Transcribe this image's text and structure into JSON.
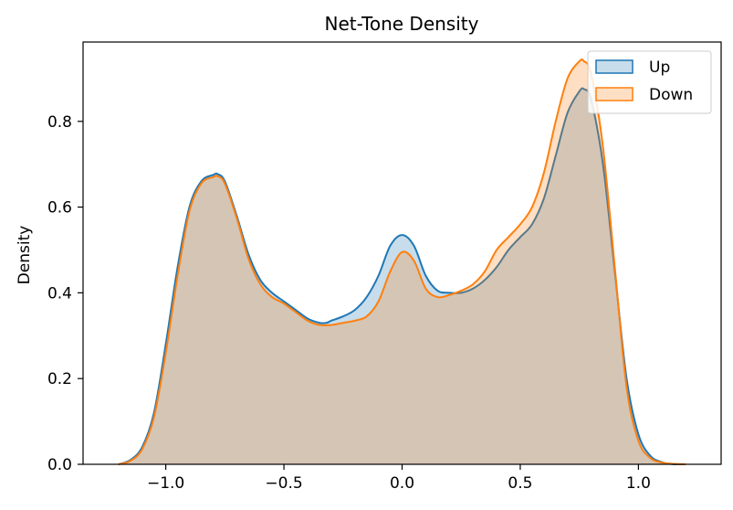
{
  "chart_data": {
    "type": "area",
    "title": "Net-Tone Density",
    "xlabel": "",
    "ylabel": "Density",
    "xlim": [
      -1.35,
      1.35
    ],
    "ylim": [
      0,
      0.985
    ],
    "xticks": [
      -1.0,
      -0.5,
      0.0,
      0.5,
      1.0
    ],
    "xtick_labels": [
      "−1.0",
      "−0.5",
      "0.0",
      "0.5",
      "1.0"
    ],
    "yticks": [
      0.0,
      0.2,
      0.4,
      0.6,
      0.8
    ],
    "ytick_labels": [
      "0.0",
      "0.2",
      "0.4",
      "0.6",
      "0.8"
    ],
    "grid": false,
    "legend_position": "top-right",
    "series": [
      {
        "name": "Up",
        "color": "#1f77b4",
        "x": [
          -1.2,
          -1.15,
          -1.1,
          -1.05,
          -1.0,
          -0.95,
          -0.9,
          -0.85,
          -0.8,
          -0.78,
          -0.75,
          -0.7,
          -0.65,
          -0.6,
          -0.55,
          -0.5,
          -0.45,
          -0.4,
          -0.35,
          -0.32,
          -0.3,
          -0.25,
          -0.2,
          -0.15,
          -0.1,
          -0.05,
          0.0,
          0.05,
          0.1,
          0.15,
          0.2,
          0.25,
          0.3,
          0.35,
          0.4,
          0.45,
          0.5,
          0.55,
          0.6,
          0.65,
          0.7,
          0.75,
          0.77,
          0.8,
          0.85,
          0.9,
          0.95,
          1.0,
          1.05,
          1.1,
          1.15,
          1.2
        ],
        "y": [
          0.0,
          0.01,
          0.04,
          0.12,
          0.28,
          0.46,
          0.6,
          0.66,
          0.675,
          0.677,
          0.66,
          0.58,
          0.49,
          0.43,
          0.4,
          0.38,
          0.36,
          0.34,
          0.33,
          0.33,
          0.335,
          0.345,
          0.36,
          0.39,
          0.44,
          0.51,
          0.535,
          0.51,
          0.44,
          0.405,
          0.4,
          0.4,
          0.41,
          0.43,
          0.46,
          0.5,
          0.53,
          0.56,
          0.62,
          0.72,
          0.82,
          0.87,
          0.875,
          0.85,
          0.7,
          0.45,
          0.2,
          0.07,
          0.02,
          0.005,
          0.0,
          0.0
        ]
      },
      {
        "name": "Down",
        "color": "#ff7f0e",
        "x": [
          -1.2,
          -1.15,
          -1.1,
          -1.05,
          -1.0,
          -0.95,
          -0.9,
          -0.85,
          -0.8,
          -0.78,
          -0.75,
          -0.7,
          -0.65,
          -0.6,
          -0.55,
          -0.5,
          -0.45,
          -0.4,
          -0.35,
          -0.3,
          -0.25,
          -0.2,
          -0.15,
          -0.1,
          -0.05,
          0.0,
          0.05,
          0.1,
          0.15,
          0.2,
          0.25,
          0.3,
          0.35,
          0.4,
          0.45,
          0.5,
          0.55,
          0.6,
          0.65,
          0.7,
          0.75,
          0.77,
          0.8,
          0.85,
          0.9,
          0.95,
          1.0,
          1.05,
          1.1,
          1.15,
          1.2
        ],
        "y": [
          0.0,
          0.008,
          0.035,
          0.11,
          0.26,
          0.44,
          0.59,
          0.655,
          0.67,
          0.672,
          0.655,
          0.575,
          0.48,
          0.42,
          0.39,
          0.375,
          0.355,
          0.335,
          0.325,
          0.325,
          0.33,
          0.335,
          0.345,
          0.38,
          0.45,
          0.495,
          0.475,
          0.41,
          0.39,
          0.395,
          0.405,
          0.42,
          0.45,
          0.5,
          0.53,
          0.56,
          0.6,
          0.68,
          0.8,
          0.9,
          0.94,
          0.94,
          0.91,
          0.74,
          0.46,
          0.18,
          0.055,
          0.015,
          0.004,
          0.001,
          0.0
        ]
      }
    ]
  }
}
